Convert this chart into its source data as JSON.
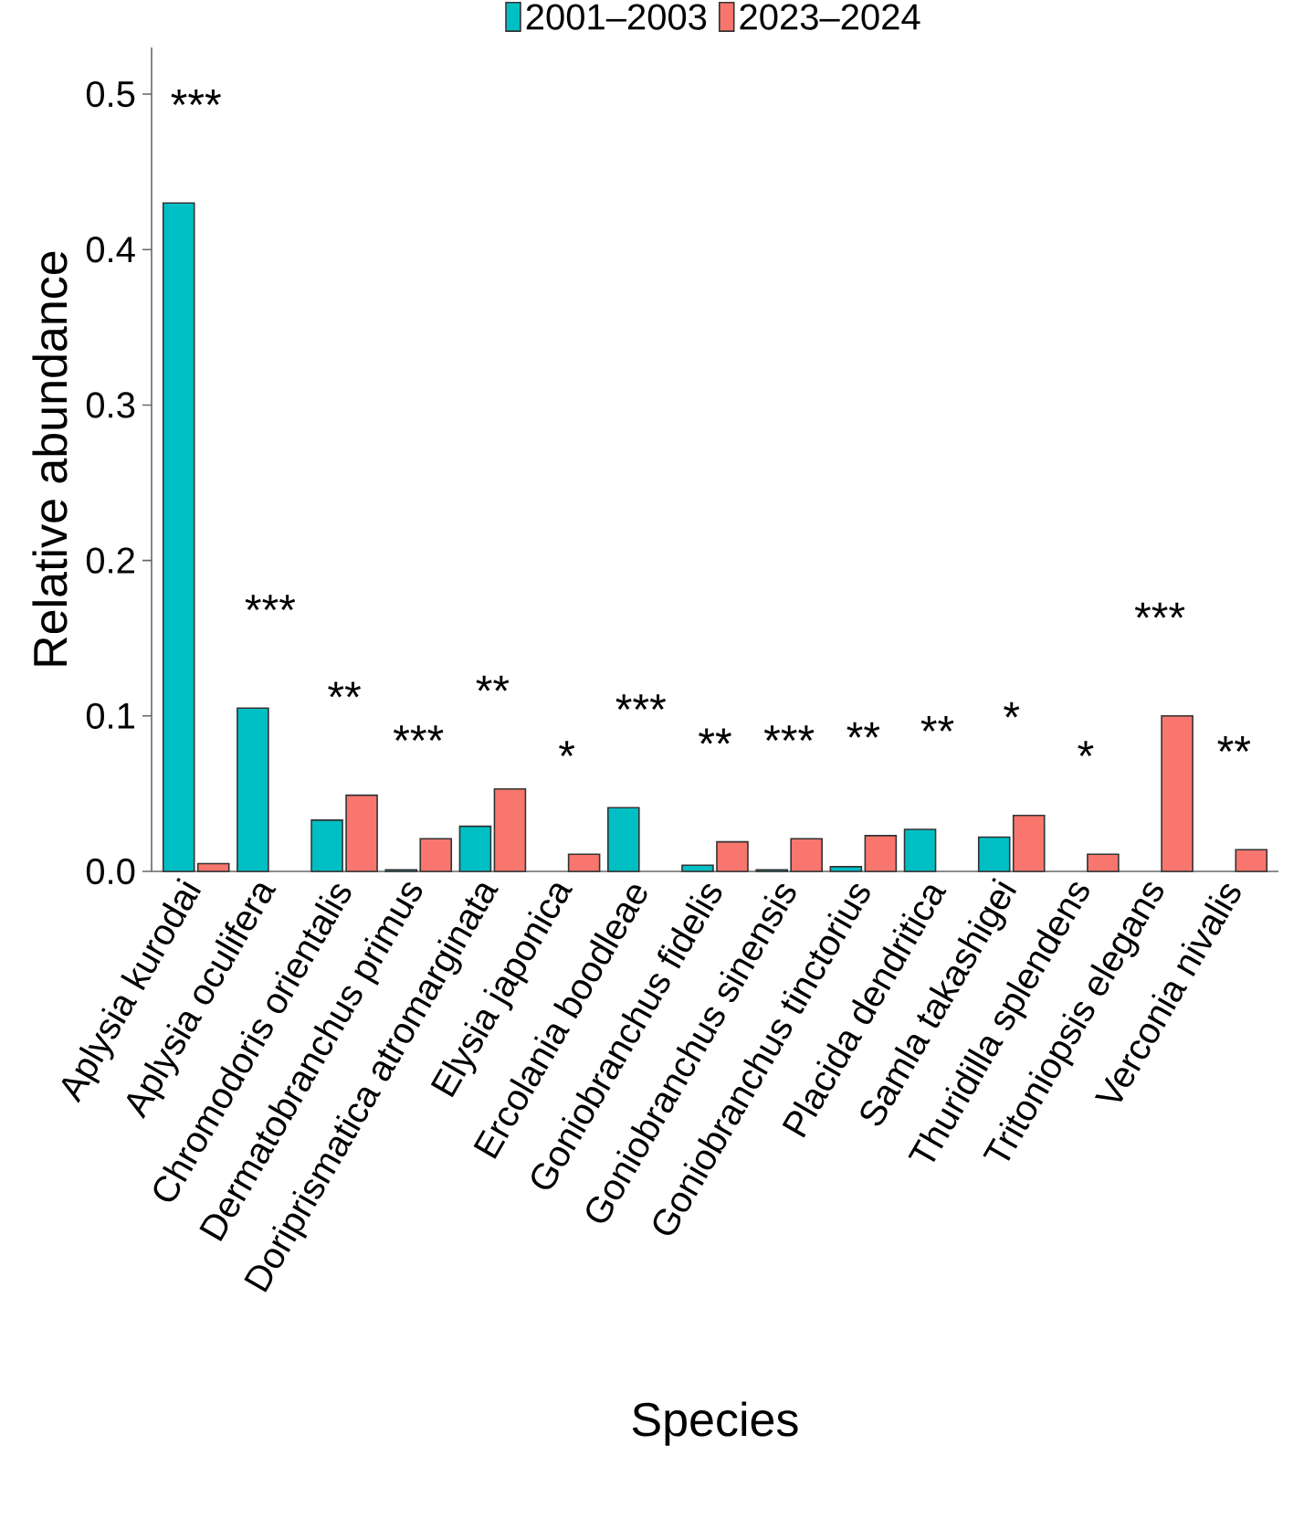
{
  "chart_data": {
    "type": "bar",
    "xlabel": "Species",
    "ylabel": "Relative abundance",
    "categories": [
      "Aplysia kurodai",
      "Aplysia oculifera",
      "Chromodoris orientalis",
      "Dermatobranchus primus",
      "Doriprismatica atromarginata",
      "Elysia japonica",
      "Ercolania boodleae",
      "Goniobranchus fidelis",
      "Goniobranchus sinensis",
      "Goniobranchus tinctorius",
      "Placida dendritica",
      "Samla takashigei",
      "Thuridilla splendens",
      "Tritoniopsis elegans",
      "Verconia nivalis"
    ],
    "series": [
      {
        "name": "2001–2003",
        "color": "#00bfc4",
        "values": [
          0.43,
          0.105,
          0.033,
          0.001,
          0.029,
          null,
          0.041,
          0.004,
          0.001,
          0.003,
          0.027,
          0.022,
          null,
          null,
          null
        ]
      },
      {
        "name": "2023–2024",
        "color": "#f8766d",
        "values": [
          0.005,
          null,
          0.049,
          0.021,
          0.053,
          0.011,
          null,
          0.019,
          0.021,
          0.023,
          null,
          0.036,
          0.011,
          0.1,
          0.014
        ]
      }
    ],
    "ylim": [
      0,
      0.53
    ],
    "yticks": [
      {
        "value": 0,
        "label": "0.0"
      },
      0.1,
      0.2,
      0.3,
      0.4,
      0.5
    ],
    "legend": "top",
    "grid": false,
    "annotations": [
      "***",
      "***",
      "**",
      "***",
      "**",
      "*",
      "***",
      "**",
      "***",
      "**",
      "**",
      "*",
      "*",
      "***",
      "**"
    ]
  }
}
